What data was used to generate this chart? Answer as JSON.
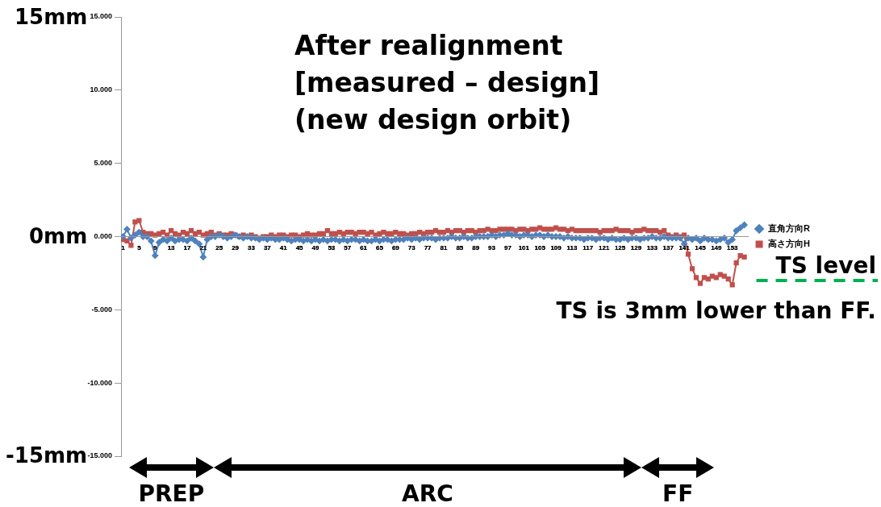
{
  "chart_data": {
    "type": "line",
    "title": "After realignment [measured – design] (new design orbit)",
    "x": [
      1,
      2,
      3,
      4,
      5,
      6,
      7,
      8,
      9,
      10,
      11,
      12,
      13,
      14,
      15,
      16,
      17,
      18,
      19,
      20,
      21,
      22,
      23,
      24,
      25,
      26,
      27,
      28,
      29,
      30,
      31,
      32,
      33,
      34,
      35,
      36,
      37,
      38,
      39,
      40,
      41,
      42,
      43,
      44,
      45,
      46,
      47,
      48,
      49,
      50,
      51,
      52,
      53,
      54,
      55,
      56,
      57,
      58,
      59,
      60,
      61,
      62,
      63,
      64,
      65,
      66,
      67,
      68,
      69,
      70,
      71,
      72,
      73,
      74,
      75,
      76,
      77,
      78,
      79,
      80,
      81,
      82,
      83,
      84,
      85,
      86,
      87,
      88,
      89,
      90,
      91,
      92,
      93,
      94,
      95,
      96,
      97,
      98,
      99,
      100,
      101,
      102,
      103,
      104,
      105,
      106,
      107,
      108,
      109,
      110,
      111,
      112,
      113,
      114,
      115,
      116,
      117,
      118,
      119,
      120,
      121,
      122,
      123,
      124,
      125,
      126,
      127,
      128,
      129,
      130,
      131,
      132,
      133,
      134,
      135,
      136,
      137,
      138,
      139,
      140,
      141,
      142,
      143,
      144,
      145,
      146,
      147,
      148,
      149,
      150,
      151,
      152,
      153,
      154,
      155,
      156
    ],
    "series": [
      {
        "name": "直角方向R",
        "color": "#4f81bd",
        "marker": "diamond",
        "values": [
          0.0,
          0.5,
          -0.1,
          0.1,
          0.3,
          0.0,
          0.0,
          -0.3,
          -1.3,
          -0.4,
          -0.2,
          -0.3,
          -0.1,
          -0.3,
          -0.2,
          -0.2,
          -0.3,
          -0.1,
          -0.3,
          -0.5,
          -1.4,
          -0.2,
          0.0,
          0.0,
          0.1,
          0.0,
          -0.1,
          0.0,
          0.1,
          0.0,
          -0.1,
          0.0,
          -0.1,
          -0.1,
          -0.2,
          -0.1,
          -0.2,
          -0.1,
          -0.2,
          -0.2,
          -0.1,
          -0.2,
          -0.3,
          -0.2,
          -0.2,
          -0.3,
          -0.2,
          -0.3,
          -0.2,
          -0.3,
          -0.2,
          -0.3,
          -0.2,
          -0.2,
          -0.3,
          -0.2,
          -0.3,
          -0.2,
          -0.2,
          -0.3,
          -0.2,
          -0.3,
          -0.3,
          -0.2,
          -0.3,
          -0.2,
          -0.2,
          -0.3,
          -0.2,
          -0.2,
          -0.2,
          -0.1,
          -0.2,
          -0.1,
          -0.2,
          -0.1,
          -0.1,
          -0.1,
          -0.2,
          -0.1,
          -0.1,
          -0.1,
          0.0,
          -0.1,
          -0.1,
          0.0,
          -0.1,
          -0.1,
          0.0,
          0.0,
          0.0,
          0.0,
          0.1,
          0.0,
          0.1,
          0.1,
          0.2,
          0.1,
          0.1,
          0.0,
          0.1,
          0.1,
          0.0,
          0.1,
          0.1,
          0.0,
          0.1,
          0.0,
          0.0,
          0.0,
          -0.1,
          0.0,
          -0.1,
          -0.1,
          -0.1,
          -0.2,
          -0.1,
          -0.1,
          -0.2,
          -0.1,
          -0.1,
          -0.2,
          -0.1,
          -0.2,
          -0.2,
          -0.1,
          -0.2,
          -0.1,
          -0.1,
          -0.2,
          -0.1,
          -0.1,
          0.0,
          -0.1,
          -0.1,
          0.0,
          -0.1,
          -0.1,
          -0.1,
          -0.1,
          -0.5,
          -0.1,
          -0.2,
          -0.1,
          -0.3,
          -0.1,
          -0.2,
          -0.2,
          -0.3,
          -0.2,
          -0.1,
          -0.4,
          -0.2,
          0.4,
          0.6,
          0.8
        ]
      },
      {
        "name": "高さ方向H",
        "color": "#c0504d",
        "marker": "square",
        "values": [
          -0.2,
          -0.3,
          -0.6,
          1.0,
          1.1,
          0.3,
          0.2,
          0.2,
          0.1,
          0.2,
          0.3,
          0.1,
          0.4,
          0.2,
          0.1,
          0.3,
          0.2,
          0.4,
          0.2,
          0.3,
          0.1,
          0.2,
          0.3,
          0.1,
          0.2,
          0.1,
          0.1,
          0.2,
          0.1,
          0.0,
          0.1,
          0.0,
          0.1,
          0.0,
          -0.1,
          0.0,
          0.0,
          0.1,
          0.0,
          0.1,
          0.1,
          0.0,
          0.1,
          0.1,
          0.0,
          0.1,
          0.2,
          0.1,
          0.1,
          0.2,
          0.2,
          0.4,
          0.2,
          0.2,
          0.3,
          0.2,
          0.3,
          0.3,
          0.2,
          0.3,
          0.3,
          0.2,
          0.3,
          0.1,
          0.2,
          0.3,
          0.2,
          0.2,
          0.3,
          0.2,
          0.2,
          0.1,
          0.2,
          0.2,
          0.3,
          0.2,
          0.3,
          0.3,
          0.4,
          0.3,
          0.3,
          0.4,
          0.3,
          0.4,
          0.4,
          0.3,
          0.4,
          0.4,
          0.3,
          0.4,
          0.4,
          0.5,
          0.4,
          0.4,
          0.5,
          0.5,
          0.5,
          0.5,
          0.4,
          0.5,
          0.5,
          0.4,
          0.5,
          0.5,
          0.6,
          0.5,
          0.5,
          0.5,
          0.6,
          0.5,
          0.5,
          0.4,
          0.5,
          0.4,
          0.4,
          0.4,
          0.4,
          0.4,
          0.4,
          0.3,
          0.4,
          0.4,
          0.4,
          0.5,
          0.4,
          0.4,
          0.4,
          0.3,
          0.4,
          0.4,
          0.5,
          0.4,
          0.4,
          0.4,
          0.3,
          0.4,
          0.1,
          0.0,
          0.1,
          0.0,
          0.1,
          -1.2,
          -2.2,
          -2.8,
          -3.2,
          -2.8,
          -2.9,
          -2.7,
          -2.8,
          -2.6,
          -2.7,
          -2.9,
          -3.3,
          -1.8,
          -1.3,
          -1.4
        ]
      }
    ],
    "xlim": [
      0.5,
      157
    ],
    "xticks": [
      1,
      5,
      9,
      13,
      17,
      21,
      25,
      29,
      33,
      37,
      41,
      45,
      49,
      53,
      57,
      61,
      65,
      69,
      73,
      77,
      81,
      85,
      89,
      93,
      97,
      101,
      105,
      109,
      113,
      117,
      121,
      125,
      129,
      133,
      137,
      141,
      145,
      149,
      153
    ],
    "ylim": [
      -15,
      15
    ],
    "yticks": [
      {
        "value": 15,
        "label": "15.000"
      },
      {
        "value": 10,
        "label": "10.000"
      },
      {
        "value": 5,
        "label": "5.000"
      },
      {
        "value": 0,
        "label": "0.000"
      },
      {
        "value": -5,
        "label": "-5.000"
      },
      {
        "value": -10,
        "label": "-10.000"
      },
      {
        "value": -15,
        "label": "-15.000"
      }
    ],
    "grid": false,
    "legend": "right",
    "ref_lines": [
      {
        "axis": "y",
        "value": -3,
        "label": "TS level",
        "color": "#00b050",
        "line_style": "dashed"
      }
    ],
    "annotations": [
      "TS is 3mm lower than FF.",
      "15mm",
      "0mm",
      "-15mm",
      "PREP",
      "ARC",
      "FF"
    ]
  }
}
